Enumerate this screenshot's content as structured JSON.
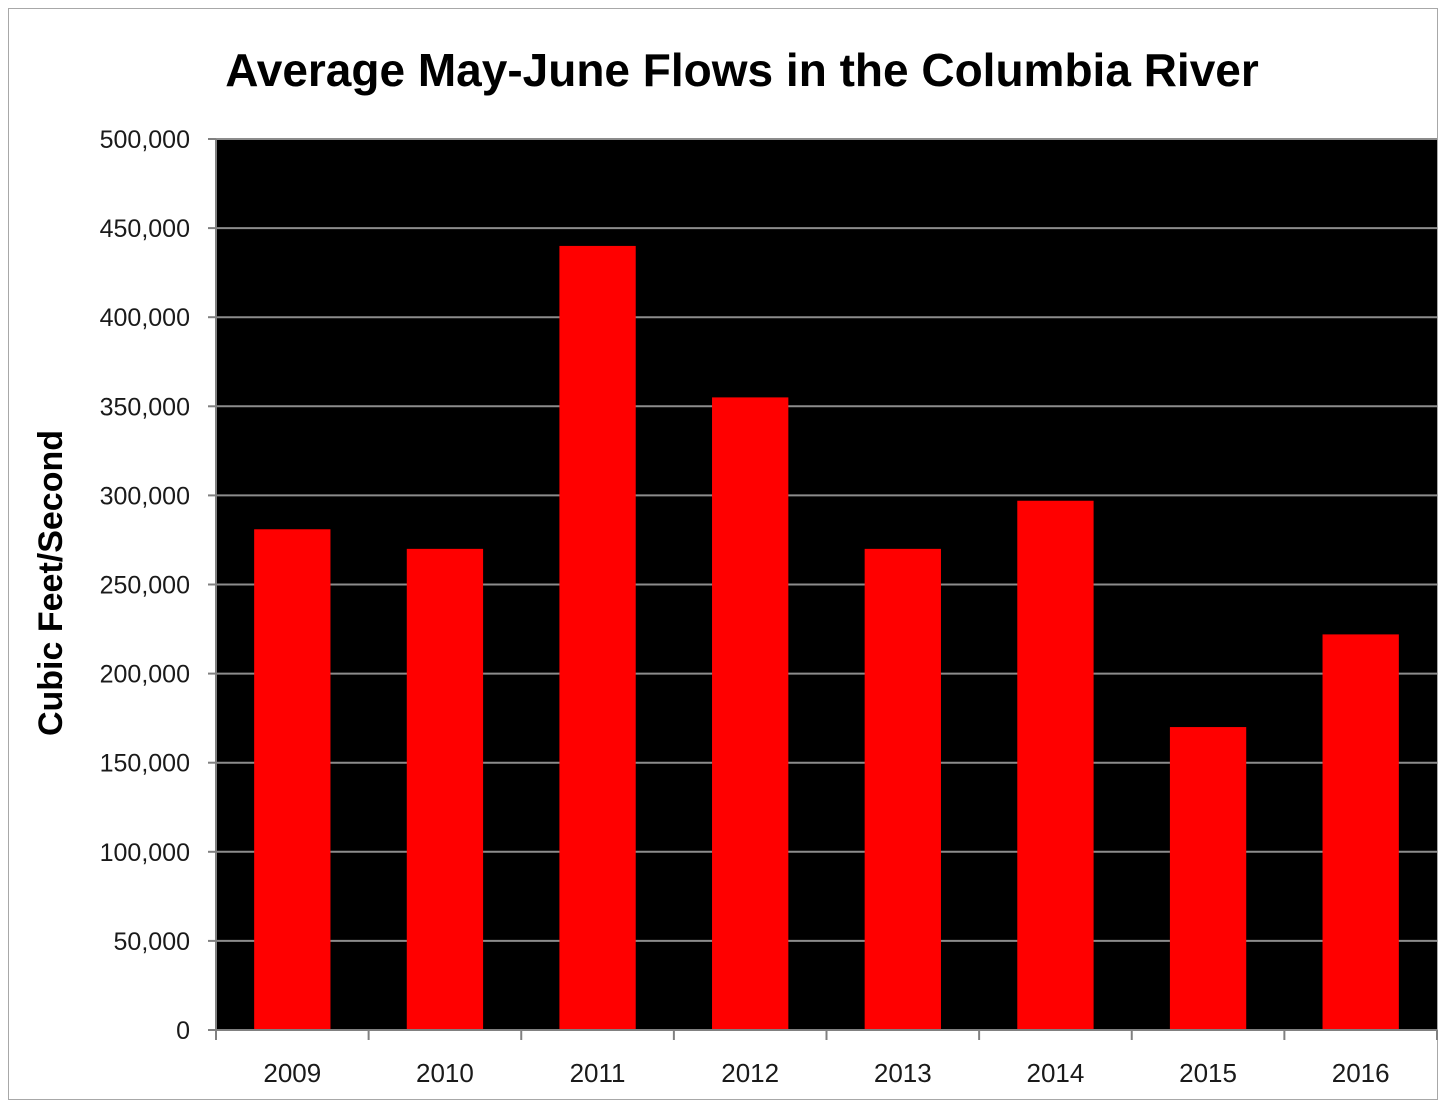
{
  "chart_data": {
    "type": "bar",
    "title": "Average May-June Flows in the Columbia River",
    "xlabel": "",
    "ylabel": "Cubic Feet/Second",
    "categories": [
      "2009",
      "2010",
      "2011",
      "2012",
      "2013",
      "2014",
      "2015",
      "2016"
    ],
    "values": [
      281000,
      270000,
      440000,
      355000,
      270000,
      297000,
      170000,
      222000
    ],
    "ylim": [
      0,
      500000
    ],
    "yticks": [
      0,
      50000,
      100000,
      150000,
      200000,
      250000,
      300000,
      350000,
      400000,
      450000,
      500000
    ],
    "ytick_labels": [
      "0",
      "50,000",
      "100,000",
      "150,000",
      "200,000",
      "250,000",
      "300,000",
      "350,000",
      "400,000",
      "450,000",
      "500,000"
    ],
    "grid": true,
    "legend": "none",
    "colors": {
      "bar": "#ff0000",
      "plot_background": "#000000",
      "gridline": "#8c8c8c",
      "page_background": "#ffffff"
    }
  }
}
